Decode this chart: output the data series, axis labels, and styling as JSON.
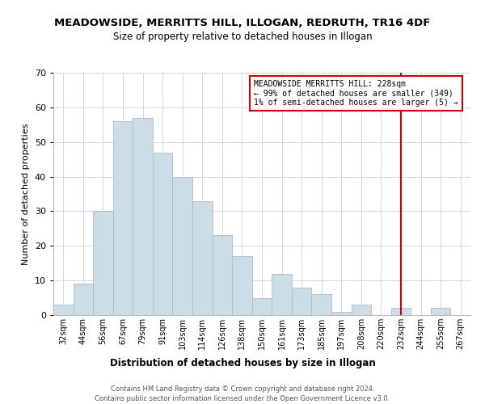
{
  "title": "MEADOWSIDE, MERRITTS HILL, ILLOGAN, REDRUTH, TR16 4DF",
  "subtitle": "Size of property relative to detached houses in Illogan",
  "xlabel": "Distribution of detached houses by size in Illogan",
  "ylabel": "Number of detached properties",
  "bin_labels": [
    "32sqm",
    "44sqm",
    "56sqm",
    "67sqm",
    "79sqm",
    "91sqm",
    "103sqm",
    "114sqm",
    "126sqm",
    "138sqm",
    "150sqm",
    "161sqm",
    "173sqm",
    "185sqm",
    "197sqm",
    "208sqm",
    "220sqm",
    "232sqm",
    "244sqm",
    "255sqm",
    "267sqm"
  ],
  "bar_heights": [
    3,
    9,
    30,
    56,
    57,
    47,
    40,
    33,
    23,
    17,
    5,
    12,
    8,
    6,
    1,
    3,
    0,
    2,
    0,
    2,
    0
  ],
  "bar_color": "#ccdde8",
  "bar_edge_color": "#a8bfcc",
  "vline_x_index": 17,
  "vline_color": "#cc0000",
  "annotation_title": "MEADOWSIDE MERRITTS HILL: 228sqm",
  "annotation_line1": "← 99% of detached houses are smaller (349)",
  "annotation_line2": "1% of semi-detached houses are larger (5) →",
  "ylim": [
    0,
    70
  ],
  "yticks": [
    0,
    10,
    20,
    30,
    40,
    50,
    60,
    70
  ],
  "footer1": "Contains HM Land Registry data © Crown copyright and database right 2024.",
  "footer2": "Contains public sector information licensed under the Open Government Licence v3.0."
}
